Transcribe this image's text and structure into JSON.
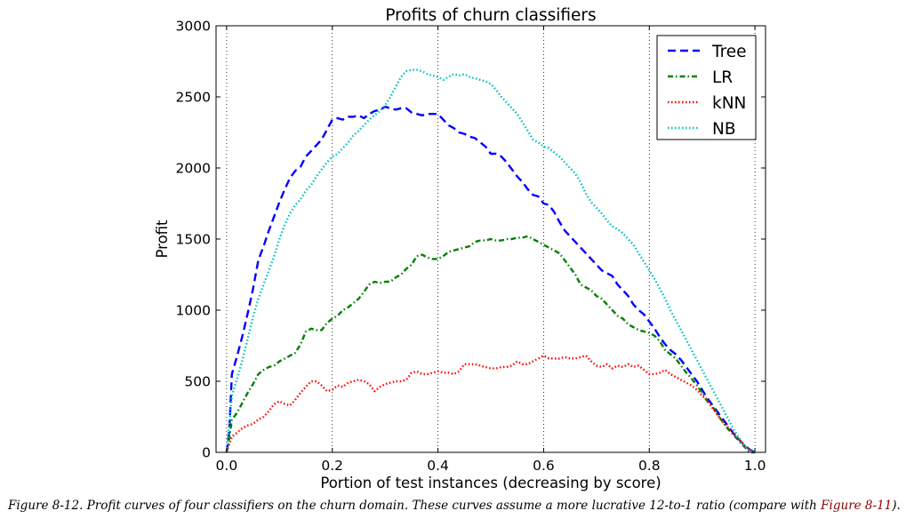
{
  "chart_data": {
    "type": "line",
    "title": "Profits of churn classifiers",
    "xlabel": "Portion of test instances (decreasing by score)",
    "ylabel": "Profit",
    "xlim": [
      -0.02,
      1.02
    ],
    "ylim": [
      0,
      3000
    ],
    "xticks": [
      0.0,
      0.2,
      0.4,
      0.6,
      0.8,
      1.0
    ],
    "xtick_labels": [
      "0.0",
      "0.2",
      "0.4",
      "0.6",
      "0.8",
      "1.0"
    ],
    "yticks": [
      0,
      500,
      1000,
      1500,
      2000,
      2500,
      3000
    ],
    "ytick_labels": [
      "0",
      "500",
      "1000",
      "1500",
      "2000",
      "2500",
      "3000"
    ],
    "grid": "vertical dotted at x ticks",
    "legend_position": "upper right",
    "series": [
      {
        "name": "Tree",
        "color": "#0000ff",
        "style": "dashed",
        "x": [
          0.0,
          0.005,
          0.01,
          0.02,
          0.03,
          0.04,
          0.05,
          0.06,
          0.07,
          0.08,
          0.09,
          0.1,
          0.11,
          0.12,
          0.13,
          0.14,
          0.15,
          0.16,
          0.17,
          0.18,
          0.19,
          0.2,
          0.21,
          0.22,
          0.23,
          0.24,
          0.25,
          0.26,
          0.27,
          0.28,
          0.29,
          0.3,
          0.31,
          0.32,
          0.33,
          0.34,
          0.35,
          0.36,
          0.37,
          0.38,
          0.39,
          0.4,
          0.41,
          0.42,
          0.43,
          0.44,
          0.45,
          0.46,
          0.47,
          0.48,
          0.49,
          0.5,
          0.51,
          0.52,
          0.53,
          0.54,
          0.55,
          0.56,
          0.57,
          0.58,
          0.59,
          0.6,
          0.61,
          0.62,
          0.63,
          0.64,
          0.65,
          0.66,
          0.67,
          0.68,
          0.69,
          0.7,
          0.71,
          0.72,
          0.73,
          0.74,
          0.75,
          0.76,
          0.77,
          0.78,
          0.79,
          0.8,
          0.81,
          0.82,
          0.83,
          0.84,
          0.85,
          0.86,
          0.87,
          0.88,
          0.89,
          0.9,
          0.91,
          0.92,
          0.93,
          0.94,
          0.95,
          0.96,
          0.97,
          0.98,
          0.99,
          1.0
        ],
        "y": [
          0,
          150,
          550,
          680,
          820,
          980,
          1150,
          1350,
          1450,
          1560,
          1660,
          1760,
          1850,
          1930,
          1980,
          2010,
          2080,
          2120,
          2160,
          2200,
          2270,
          2340,
          2350,
          2340,
          2360,
          2360,
          2370,
          2350,
          2380,
          2400,
          2410,
          2430,
          2420,
          2410,
          2420,
          2420,
          2390,
          2380,
          2370,
          2380,
          2380,
          2380,
          2340,
          2300,
          2280,
          2250,
          2240,
          2220,
          2210,
          2180,
          2150,
          2100,
          2100,
          2080,
          2040,
          1990,
          1940,
          1900,
          1850,
          1810,
          1800,
          1750,
          1740,
          1690,
          1620,
          1560,
          1520,
          1480,
          1440,
          1400,
          1360,
          1320,
          1280,
          1260,
          1240,
          1180,
          1140,
          1100,
          1040,
          1000,
          970,
          920,
          870,
          810,
          760,
          720,
          690,
          650,
          600,
          550,
          500,
          440,
          380,
          330,
          280,
          230,
          180,
          130,
          90,
          50,
          20,
          0
        ]
      },
      {
        "name": "LR",
        "color": "#008000",
        "style": "dash-dot",
        "x": [
          0.0,
          0.005,
          0.01,
          0.02,
          0.03,
          0.04,
          0.05,
          0.06,
          0.07,
          0.08,
          0.09,
          0.1,
          0.11,
          0.12,
          0.13,
          0.14,
          0.15,
          0.16,
          0.17,
          0.18,
          0.19,
          0.2,
          0.21,
          0.22,
          0.23,
          0.24,
          0.25,
          0.26,
          0.27,
          0.28,
          0.29,
          0.3,
          0.31,
          0.32,
          0.33,
          0.34,
          0.35,
          0.36,
          0.37,
          0.38,
          0.39,
          0.4,
          0.41,
          0.42,
          0.43,
          0.44,
          0.45,
          0.46,
          0.47,
          0.48,
          0.49,
          0.5,
          0.51,
          0.52,
          0.53,
          0.54,
          0.55,
          0.56,
          0.57,
          0.58,
          0.59,
          0.6,
          0.61,
          0.62,
          0.63,
          0.64,
          0.65,
          0.66,
          0.67,
          0.68,
          0.69,
          0.7,
          0.71,
          0.72,
          0.73,
          0.74,
          0.75,
          0.76,
          0.77,
          0.78,
          0.79,
          0.8,
          0.81,
          0.82,
          0.83,
          0.84,
          0.85,
          0.86,
          0.87,
          0.88,
          0.89,
          0.9,
          0.91,
          0.92,
          0.93,
          0.94,
          0.95,
          0.96,
          0.97,
          0.98,
          0.99,
          1.0
        ],
        "y": [
          0,
          100,
          230,
          280,
          350,
          420,
          480,
          550,
          580,
          600,
          610,
          640,
          660,
          680,
          700,
          760,
          850,
          870,
          860,
          860,
          910,
          940,
          960,
          1000,
          1020,
          1050,
          1080,
          1130,
          1180,
          1200,
          1190,
          1200,
          1200,
          1230,
          1250,
          1290,
          1320,
          1380,
          1390,
          1370,
          1360,
          1360,
          1380,
          1410,
          1420,
          1430,
          1440,
          1450,
          1480,
          1490,
          1490,
          1500,
          1490,
          1490,
          1500,
          1500,
          1510,
          1510,
          1520,
          1500,
          1480,
          1460,
          1440,
          1420,
          1400,
          1350,
          1300,
          1250,
          1180,
          1160,
          1140,
          1100,
          1080,
          1040,
          1000,
          960,
          940,
          900,
          880,
          860,
          850,
          840,
          820,
          780,
          720,
          690,
          660,
          610,
          560,
          520,
          470,
          420,
          360,
          320,
          260,
          210,
          160,
          120,
          80,
          40,
          0,
          0
        ]
      },
      {
        "name": "kNN",
        "color": "#ff0000",
        "style": "dotted",
        "x": [
          0.0,
          0.005,
          0.01,
          0.02,
          0.03,
          0.04,
          0.05,
          0.06,
          0.07,
          0.08,
          0.09,
          0.1,
          0.11,
          0.12,
          0.13,
          0.14,
          0.15,
          0.16,
          0.17,
          0.18,
          0.19,
          0.2,
          0.21,
          0.22,
          0.23,
          0.24,
          0.25,
          0.26,
          0.27,
          0.28,
          0.29,
          0.3,
          0.31,
          0.32,
          0.33,
          0.34,
          0.35,
          0.36,
          0.37,
          0.38,
          0.39,
          0.4,
          0.41,
          0.42,
          0.43,
          0.44,
          0.45,
          0.46,
          0.47,
          0.48,
          0.49,
          0.5,
          0.51,
          0.52,
          0.53,
          0.54,
          0.55,
          0.56,
          0.57,
          0.58,
          0.59,
          0.6,
          0.61,
          0.62,
          0.63,
          0.64,
          0.65,
          0.66,
          0.67,
          0.68,
          0.69,
          0.7,
          0.71,
          0.72,
          0.73,
          0.74,
          0.75,
          0.76,
          0.77,
          0.78,
          0.79,
          0.8,
          0.81,
          0.82,
          0.83,
          0.84,
          0.85,
          0.86,
          0.87,
          0.88,
          0.89,
          0.9,
          0.91,
          0.92,
          0.93,
          0.94,
          0.95,
          0.96,
          0.97,
          0.98,
          0.99,
          1.0
        ],
        "y": [
          0,
          60,
          110,
          140,
          170,
          190,
          200,
          230,
          250,
          290,
          340,
          360,
          340,
          330,
          370,
          420,
          460,
          500,
          500,
          470,
          430,
          440,
          470,
          460,
          490,
          500,
          510,
          500,
          480,
          430,
          460,
          480,
          490,
          500,
          500,
          510,
          560,
          570,
          550,
          550,
          560,
          570,
          560,
          560,
          550,
          570,
          620,
          620,
          620,
          610,
          600,
          590,
          590,
          600,
          600,
          610,
          640,
          620,
          620,
          640,
          660,
          680,
          660,
          660,
          660,
          670,
          660,
          660,
          670,
          680,
          640,
          610,
          600,
          620,
          590,
          610,
          600,
          620,
          600,
          610,
          580,
          550,
          550,
          560,
          580,
          550,
          530,
          510,
          490,
          470,
          440,
          400,
          360,
          310,
          260,
          210,
          170,
          130,
          90,
          50,
          20,
          0
        ]
      },
      {
        "name": "NB",
        "color": "#00bfbf",
        "style": "dotted",
        "x": [
          0.0,
          0.005,
          0.01,
          0.02,
          0.03,
          0.04,
          0.05,
          0.06,
          0.07,
          0.08,
          0.09,
          0.1,
          0.11,
          0.12,
          0.13,
          0.14,
          0.15,
          0.16,
          0.17,
          0.18,
          0.19,
          0.2,
          0.21,
          0.22,
          0.23,
          0.24,
          0.25,
          0.26,
          0.27,
          0.28,
          0.29,
          0.3,
          0.31,
          0.32,
          0.33,
          0.34,
          0.35,
          0.36,
          0.37,
          0.38,
          0.39,
          0.4,
          0.41,
          0.42,
          0.43,
          0.44,
          0.45,
          0.46,
          0.47,
          0.48,
          0.49,
          0.5,
          0.51,
          0.52,
          0.53,
          0.54,
          0.55,
          0.56,
          0.57,
          0.58,
          0.59,
          0.6,
          0.61,
          0.62,
          0.63,
          0.64,
          0.65,
          0.66,
          0.67,
          0.68,
          0.69,
          0.7,
          0.71,
          0.72,
          0.73,
          0.74,
          0.75,
          0.76,
          0.77,
          0.78,
          0.79,
          0.8,
          0.81,
          0.82,
          0.83,
          0.84,
          0.85,
          0.86,
          0.87,
          0.88,
          0.89,
          0.9,
          0.91,
          0.92,
          0.93,
          0.94,
          0.95,
          0.96,
          0.97,
          0.98,
          0.99,
          1.0
        ],
        "y": [
          0,
          200,
          400,
          520,
          650,
          800,
          950,
          1080,
          1180,
          1280,
          1380,
          1500,
          1600,
          1680,
          1740,
          1780,
          1840,
          1880,
          1940,
          1990,
          2040,
          2080,
          2100,
          2140,
          2180,
          2230,
          2260,
          2300,
          2340,
          2370,
          2400,
          2440,
          2500,
          2570,
          2640,
          2680,
          2690,
          2690,
          2680,
          2660,
          2650,
          2640,
          2620,
          2640,
          2660,
          2650,
          2660,
          2640,
          2630,
          2620,
          2610,
          2590,
          2550,
          2500,
          2460,
          2420,
          2380,
          2320,
          2260,
          2200,
          2180,
          2150,
          2140,
          2110,
          2080,
          2040,
          2000,
          1960,
          1900,
          1820,
          1760,
          1720,
          1680,
          1630,
          1590,
          1570,
          1540,
          1500,
          1460,
          1400,
          1340,
          1280,
          1220,
          1150,
          1080,
          1000,
          930,
          860,
          790,
          720,
          650,
          580,
          510,
          440,
          370,
          300,
          230,
          160,
          100,
          50,
          10,
          0
        ]
      }
    ]
  },
  "caption": {
    "text": "Figure 8-12. Profit curves of four classifiers on the churn domain. These curves assume a more lucrative 12-to-1 ratio (compare with ",
    "link": "Figure 8-11",
    "end": ")."
  }
}
